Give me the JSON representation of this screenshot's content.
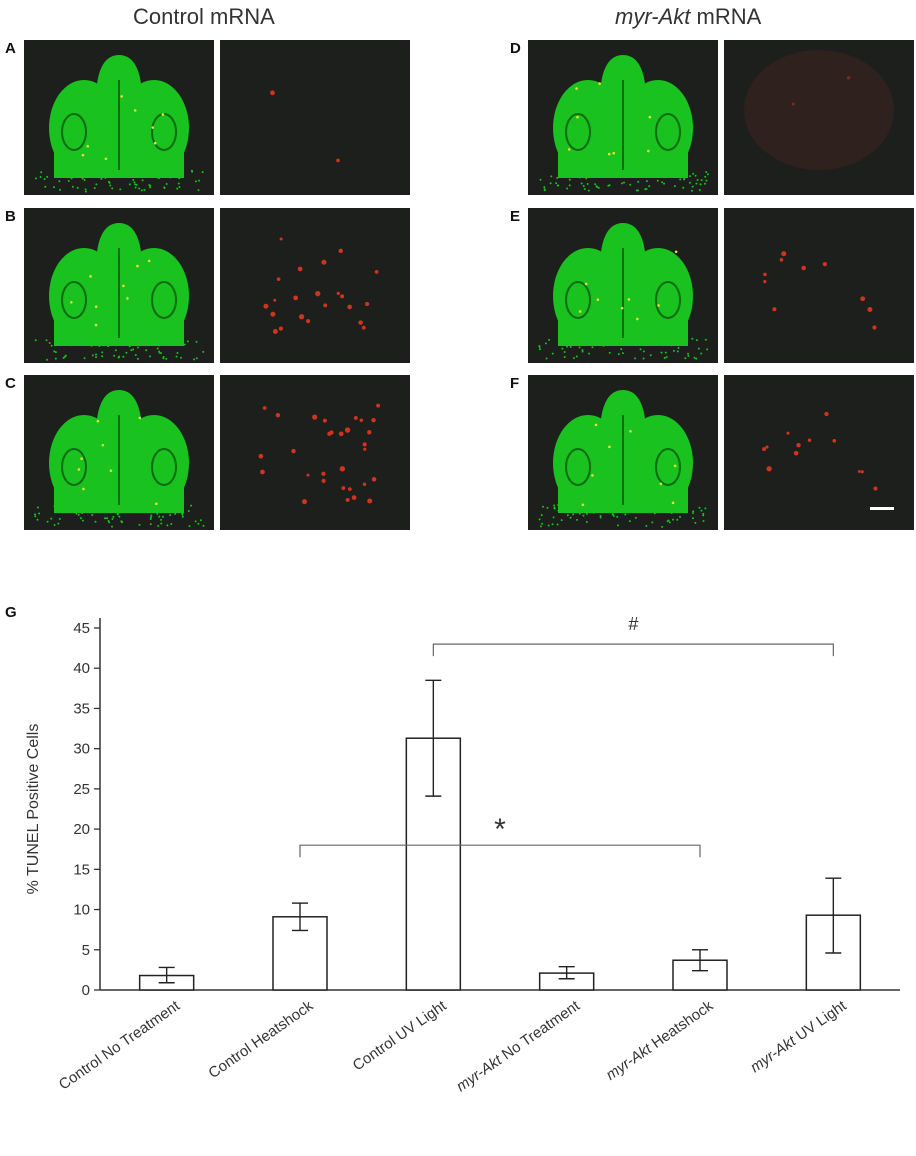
{
  "figure": {
    "column_titles": [
      {
        "text": "Control",
        "text2": " mRNA"
      },
      {
        "text": "myr-Akt",
        "text2": " mRNA"
      }
    ],
    "panel_letters": [
      "A",
      "B",
      "C",
      "D",
      "E",
      "F",
      "G"
    ],
    "colors": {
      "tissue_green": "#19c21e",
      "tile_background": "#1c1f1c",
      "tunel_red": "#d0341f",
      "scale_bar": "#ffffff"
    }
  },
  "chart_data": {
    "type": "bar",
    "categories": [
      "Control No Treatment",
      "Control Heatshock",
      "Control UV Light",
      "myr-Akt No Treatment",
      "myr-Akt Heatshock",
      "myr-Akt UV Light"
    ],
    "category_parts": [
      {
        "italic": "",
        "plain": "Control No Treatment"
      },
      {
        "italic": "",
        "plain": "Control Heatshock"
      },
      {
        "italic": "",
        "plain": "Control UV Light"
      },
      {
        "italic": "myr-Akt",
        "plain": " No Treatment"
      },
      {
        "italic": "myr-Akt",
        "plain": " Heatshock"
      },
      {
        "italic": "myr-Akt",
        "plain": " UV Light"
      }
    ],
    "values": [
      1.8,
      9.1,
      31.3,
      2.1,
      3.7,
      9.3
    ],
    "error_high": [
      2.8,
      10.8,
      38.5,
      2.9,
      5.0,
      13.9
    ],
    "error_low": [
      0.9,
      7.4,
      24.1,
      1.4,
      2.4,
      4.6
    ],
    "ylabel": "% TUNEL Positive Cells",
    "ylim": [
      0,
      45
    ],
    "yticks": [
      0,
      5,
      10,
      15,
      20,
      25,
      30,
      35,
      40,
      45
    ],
    "grid": false,
    "significance": [
      {
        "symbol": "*",
        "from": 1,
        "to": 4,
        "y": 18
      },
      {
        "symbol": "#",
        "from": 2,
        "to": 5,
        "y": 43
      }
    ]
  }
}
